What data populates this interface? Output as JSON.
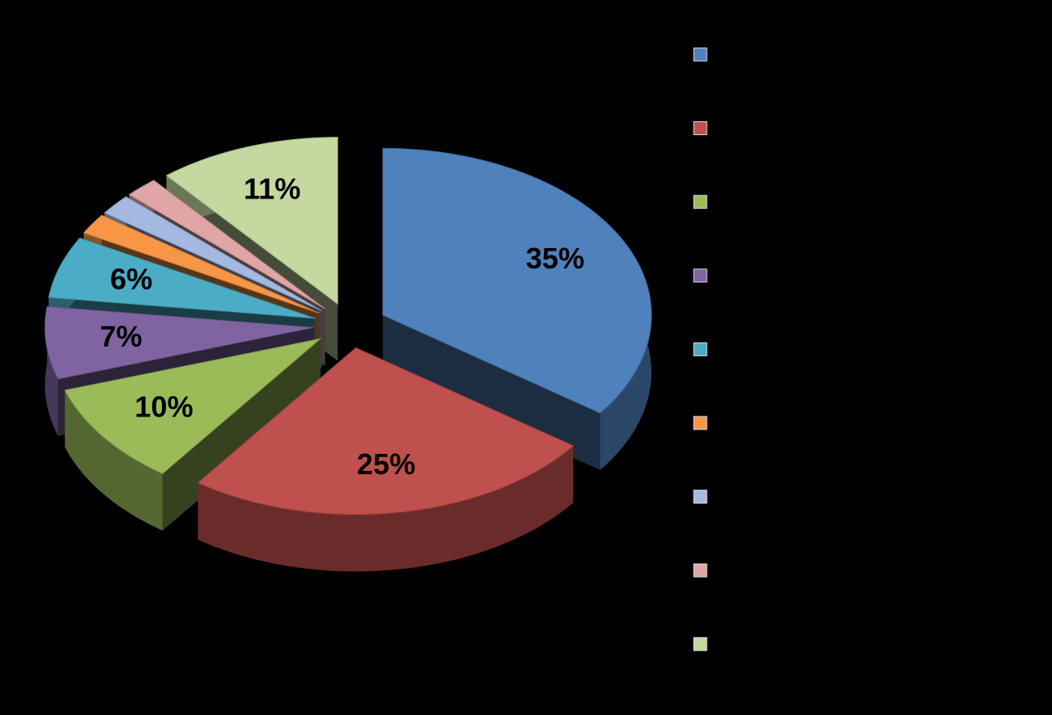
{
  "chart_data": {
    "type": "pie",
    "values": [
      35,
      25,
      10,
      7,
      6,
      2,
      2,
      2,
      11
    ],
    "value_labels": [
      "35%",
      "25%",
      "10%",
      "7%",
      "6%",
      null,
      null,
      null,
      "11%"
    ],
    "colors": [
      "#4f81bd",
      "#c0504d",
      "#9bbb59",
      "#8064a2",
      "#4bacc6",
      "#f79646",
      "#a5b8e0",
      "#e0a5a5",
      "#c4d8a0"
    ]
  }
}
